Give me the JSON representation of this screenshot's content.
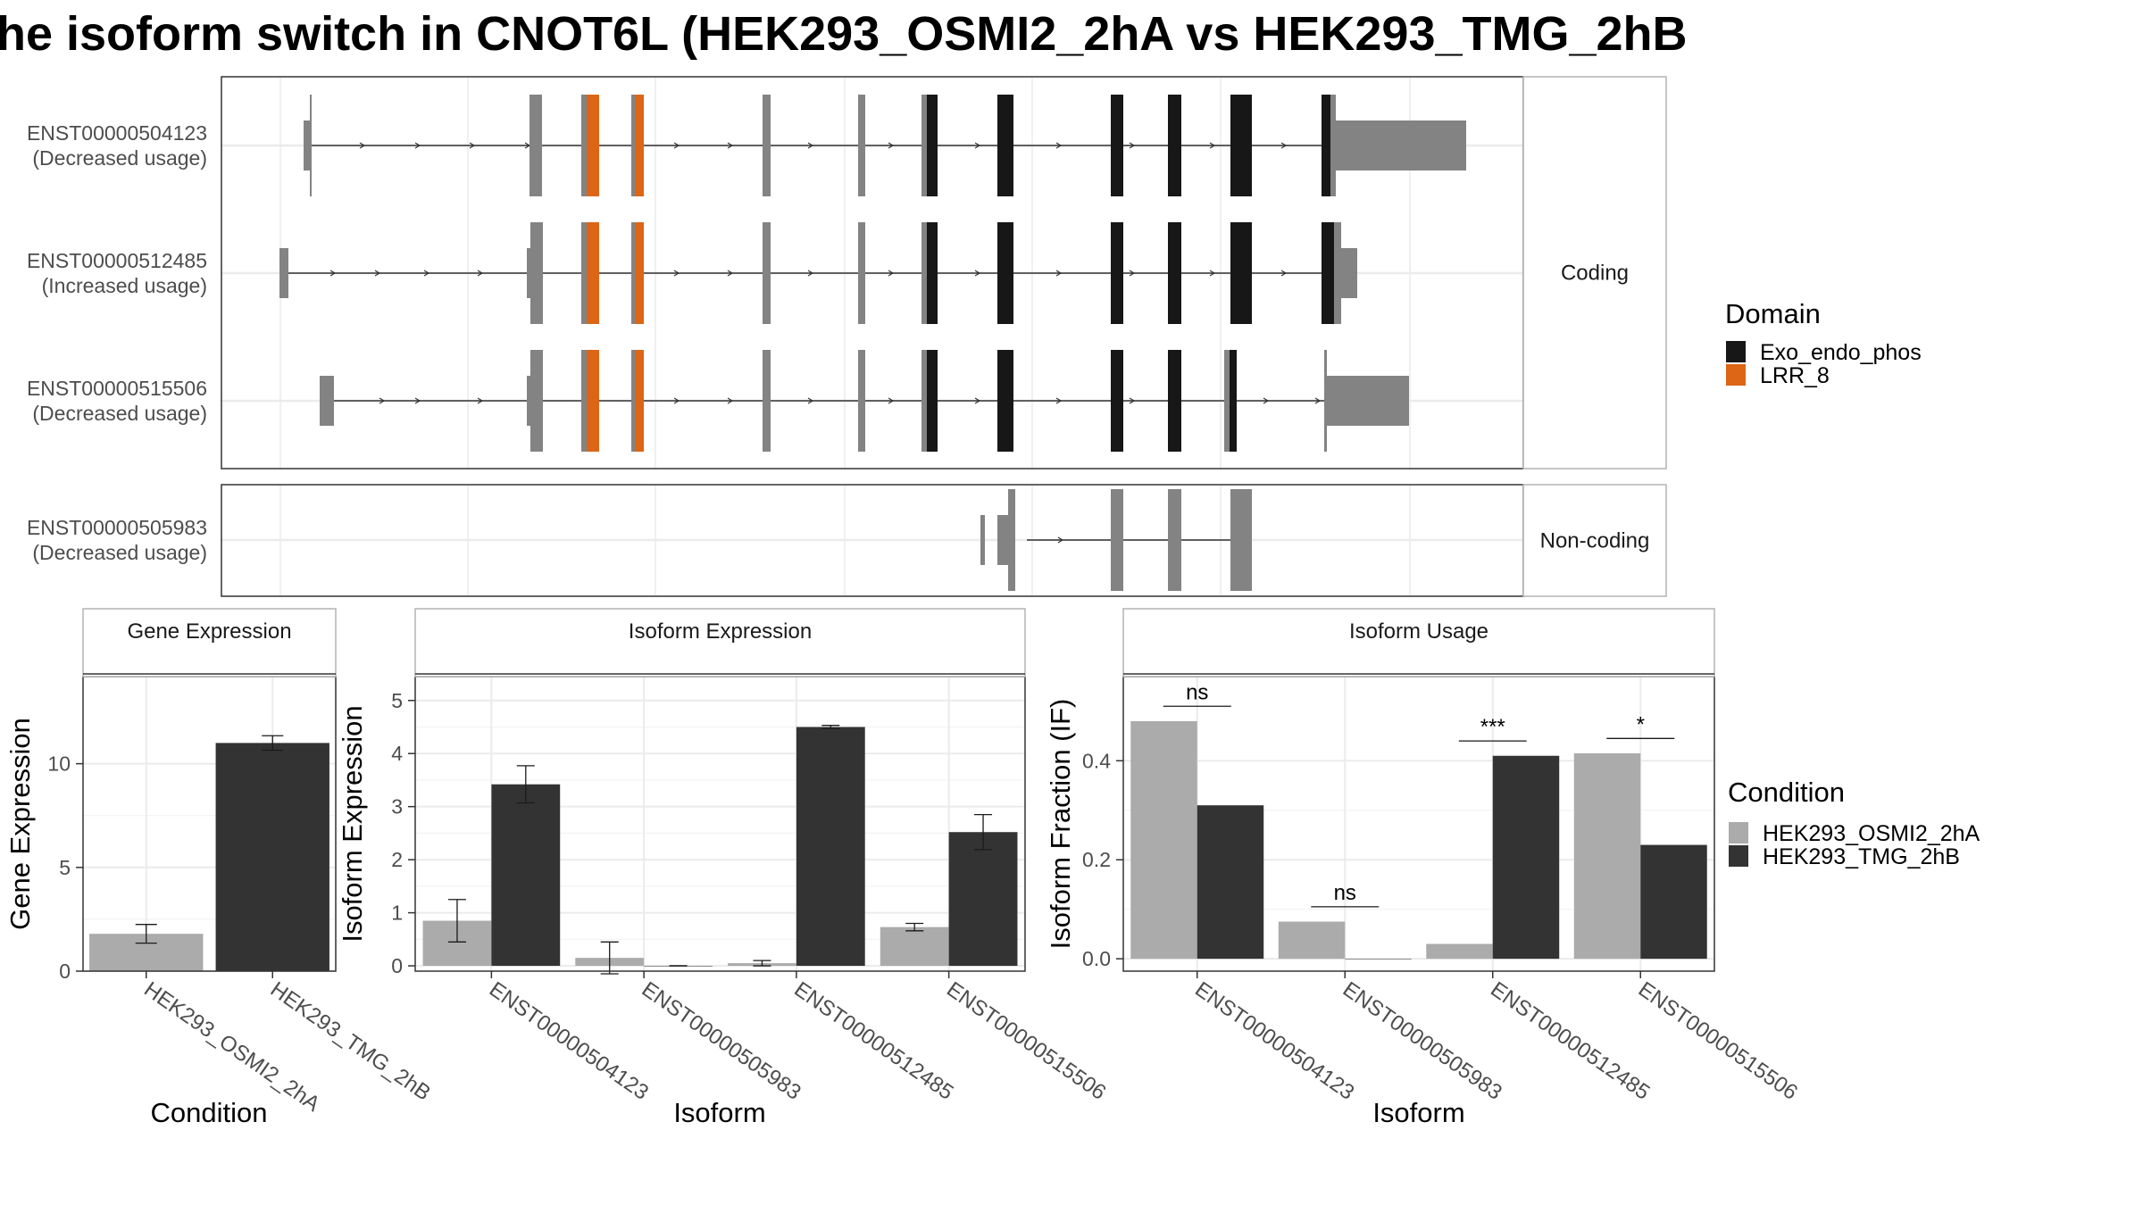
{
  "title": "he isoform switch in CNOT6L (HEK293_OSMI2_2hA vs HEK293_TMG_2hB",
  "colors": {
    "exon": "#838383",
    "exo_endo_phos": "#171717",
    "lrr_8": "#dd6516",
    "cond_a": "#ababab",
    "cond_b": "#333333",
    "panel_border": "#333333",
    "strip_border": "#b3b3b3",
    "grid": "#ebebeb"
  },
  "structure": {
    "facets": [
      {
        "label": "Coding",
        "transcripts": [
          {
            "id": "ENST00000504123",
            "usage": "(Decreased usage)"
          },
          {
            "id": "ENST00000512485",
            "usage": "(Increased usage)"
          },
          {
            "id": "ENST00000515506",
            "usage": "(Decreased usage)"
          }
        ]
      },
      {
        "label": "Non-coding",
        "transcripts": [
          {
            "id": "ENST00000505983",
            "usage": "(Decreased usage)"
          }
        ]
      }
    ],
    "legend": {
      "title": "Domain",
      "items": [
        {
          "label": "Exo_endo_phos",
          "color": "#171717"
        },
        {
          "label": "LRR_8",
          "color": "#dd6516"
        }
      ]
    }
  },
  "condition_legend": {
    "title": "Condition",
    "items": [
      {
        "label": "HEK293_OSMI2_2hA",
        "color": "#ababab"
      },
      {
        "label": "HEK293_TMG_2hB",
        "color": "#333333"
      }
    ]
  },
  "chart_data": [
    {
      "type": "bar",
      "title": "Gene Expression",
      "xlabel": "Condition",
      "ylabel": "Gene Expression",
      "ylim": [
        0,
        14.2
      ],
      "yticks": [
        0,
        5,
        10
      ],
      "categories": [
        "HEK293_OSMI2_2hA",
        "HEK293_TMG_2hB"
      ],
      "values": [
        1.8,
        11.0
      ],
      "errors": [
        0.45,
        0.35
      ]
    },
    {
      "type": "bar",
      "title": "Isoform Expression",
      "xlabel": "Isoform",
      "ylabel": "Isoform Expression",
      "ylim": [
        -0.1,
        5.45
      ],
      "yticks": [
        0,
        1,
        2,
        3,
        4,
        5
      ],
      "categories": [
        "ENST00000504123",
        "ENST00000505983",
        "ENST00000512485",
        "ENST00000515506"
      ],
      "series": [
        {
          "name": "HEK293_OSMI2_2hA",
          "values": [
            0.85,
            0.15,
            0.05,
            0.73
          ],
          "errors": [
            0.4,
            0.3,
            0.05,
            0.07
          ]
        },
        {
          "name": "HEK293_TMG_2hB",
          "values": [
            3.42,
            0.0,
            4.5,
            2.52
          ],
          "errors": [
            0.35,
            0.0,
            0.03,
            0.33
          ]
        }
      ]
    },
    {
      "type": "bar",
      "title": "Isoform Usage",
      "xlabel": "Isoform",
      "ylabel": "Isoform Fraction (IF)",
      "ylim": [
        -0.025,
        0.57
      ],
      "yticks": [
        0.0,
        0.2,
        0.4
      ],
      "ytick_labels": [
        "0.0",
        "0.2",
        "0.4"
      ],
      "categories": [
        "ENST00000504123",
        "ENST00000505983",
        "ENST00000512485",
        "ENST00000515506"
      ],
      "series": [
        {
          "name": "HEK293_OSMI2_2hA",
          "values": [
            0.48,
            0.075,
            0.03,
            0.415
          ]
        },
        {
          "name": "HEK293_TMG_2hB",
          "values": [
            0.31,
            0.0,
            0.41,
            0.23
          ]
        }
      ],
      "significance": [
        "ns",
        "ns",
        "***",
        "*"
      ]
    }
  ]
}
